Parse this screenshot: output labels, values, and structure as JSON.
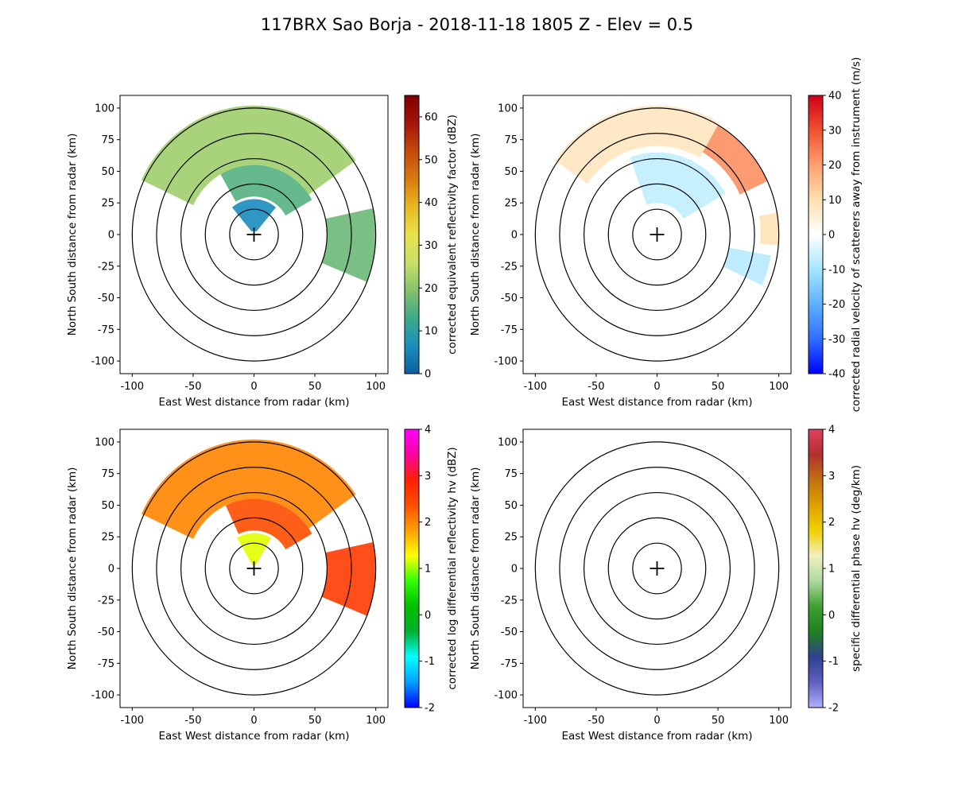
{
  "figure": {
    "title": "117BRX Sao Borja - 2018-11-18 1805 Z -  Elev = 0.5",
    "background": "#ffffff"
  },
  "chart_data": [
    {
      "type": "heatmap",
      "subtype": "radar-ppi",
      "title": "",
      "xlabel": "East West distance from radar (km)",
      "ylabel": "North South distance from radar (km)",
      "xlim": [
        -110,
        110
      ],
      "ylim": [
        -110,
        110
      ],
      "xticks": [
        -100,
        -50,
        0,
        50,
        100
      ],
      "yticks": [
        -100,
        -75,
        -50,
        -25,
        0,
        25,
        50,
        75,
        100
      ],
      "range_rings_km": [
        20,
        40,
        60,
        80,
        100
      ],
      "colorbar": {
        "label": "corrected equivalent reflectivity factor (dBZ)",
        "vmin": 0,
        "vmax": 65,
        "ticks": [
          0,
          10,
          20,
          30,
          40,
          50,
          60
        ],
        "colormap": [
          "#0a5f9e",
          "#1a8fbf",
          "#3fa98a",
          "#86c26b",
          "#c8e06a",
          "#e9e24a",
          "#e6b820",
          "#d97a10",
          "#c44b0a",
          "#a41408",
          "#800000"
        ]
      },
      "echoes": [
        {
          "az_start": -65,
          "az_end": 55,
          "r_min": 55,
          "r_max": 102,
          "value": 22
        },
        {
          "az_start": -30,
          "az_end": 60,
          "r_min": 30,
          "r_max": 55,
          "value": 15
        },
        {
          "az_start": -40,
          "az_end": 40,
          "r_min": 3,
          "r_max": 28,
          "value": 6
        },
        {
          "az_start": 78,
          "az_end": 112,
          "r_min": 60,
          "r_max": 100,
          "value": 17
        }
      ]
    },
    {
      "type": "heatmap",
      "subtype": "radar-ppi",
      "title": "",
      "xlabel": "East West distance from radar (km)",
      "ylabel": "North South distance from radar (km)",
      "xlim": [
        -110,
        110
      ],
      "ylim": [
        -110,
        110
      ],
      "xticks": [
        -100,
        -50,
        0,
        50,
        100
      ],
      "yticks": [
        -100,
        -75,
        -50,
        -25,
        0,
        25,
        50,
        75,
        100
      ],
      "range_rings_km": [
        20,
        40,
        60,
        80,
        100
      ],
      "colorbar": {
        "label": "corrected radial velocity of scatterers away from instrument (m/s)",
        "vmin": -40,
        "vmax": 40,
        "ticks": [
          -40,
          -30,
          -20,
          -10,
          0,
          10,
          20,
          30,
          40
        ],
        "colormap": [
          "#0000ff",
          "#2f6fff",
          "#5fb0ff",
          "#a6e6ff",
          "#ffffff",
          "#ffe0b0",
          "#ffa070",
          "#f05030",
          "#d0001a"
        ]
      },
      "echoes": [
        {
          "az_start": -55,
          "az_end": 30,
          "r_min": 70,
          "r_max": 102,
          "value": 8
        },
        {
          "az_start": 30,
          "az_end": 65,
          "r_min": 75,
          "r_max": 100,
          "value": 22
        },
        {
          "az_start": -20,
          "az_end": 60,
          "r_min": 25,
          "r_max": 65,
          "value": -7
        },
        {
          "az_start": 80,
          "az_end": 95,
          "r_min": 85,
          "r_max": 100,
          "value": 9
        },
        {
          "az_start": 100,
          "az_end": 115,
          "r_min": 60,
          "r_max": 95,
          "value": -8
        }
      ]
    },
    {
      "type": "heatmap",
      "subtype": "radar-ppi",
      "title": "",
      "xlabel": "East West distance from radar (km)",
      "ylabel": "North South distance from radar (km)",
      "xlim": [
        -110,
        110
      ],
      "ylim": [
        -110,
        110
      ],
      "xticks": [
        -100,
        -50,
        0,
        50,
        100
      ],
      "yticks": [
        -100,
        -75,
        -50,
        -25,
        0,
        25,
        50,
        75,
        100
      ],
      "range_rings_km": [
        20,
        40,
        60,
        80,
        100
      ],
      "colorbar": {
        "label": "corrected log differential reflectivity hv (dBZ)",
        "vmin": -2,
        "vmax": 4,
        "ticks": [
          -2,
          -1,
          0,
          1,
          2,
          3,
          4
        ],
        "colormap": [
          "#0000ff",
          "#00a0ff",
          "#00ffff",
          "#00b030",
          "#00c000",
          "#30ff00",
          "#ffff00",
          "#ffa000",
          "#ff5000",
          "#ff2000",
          "#ff00a0",
          "#ff00ff"
        ]
      },
      "echoes": [
        {
          "az_start": -65,
          "az_end": 55,
          "r_min": 55,
          "r_max": 102,
          "value": 2.0
        },
        {
          "az_start": -25,
          "az_end": 60,
          "r_min": 30,
          "r_max": 55,
          "value": 2.4
        },
        {
          "az_start": -30,
          "az_end": 30,
          "r_min": 3,
          "r_max": 28,
          "value": 1.2
        },
        {
          "az_start": 78,
          "az_end": 112,
          "r_min": 60,
          "r_max": 100,
          "value": 2.6
        }
      ]
    },
    {
      "type": "heatmap",
      "subtype": "radar-ppi",
      "title": "",
      "xlabel": "East West distance from radar (km)",
      "ylabel": "North South distance from radar (km)",
      "xlim": [
        -110,
        110
      ],
      "ylim": [
        -110,
        110
      ],
      "xticks": [
        -100,
        -50,
        0,
        50,
        100
      ],
      "yticks": [
        -100,
        -75,
        -50,
        -25,
        0,
        25,
        50,
        75,
        100
      ],
      "range_rings_km": [
        20,
        40,
        60,
        80,
        100
      ],
      "colorbar": {
        "label": "specific differential phase hv (deg/km)",
        "vmin": -2,
        "vmax": 4,
        "ticks": [
          -2,
          -1,
          0,
          1,
          2,
          3,
          4
        ],
        "colormap": [
          "#b0b0ff",
          "#6060c0",
          "#304090",
          "#208020",
          "#40a030",
          "#b0d8a0",
          "#f0f0c0",
          "#f0d000",
          "#e0a000",
          "#c07010",
          "#b03030",
          "#e04060"
        ]
      },
      "echoes": []
    }
  ]
}
